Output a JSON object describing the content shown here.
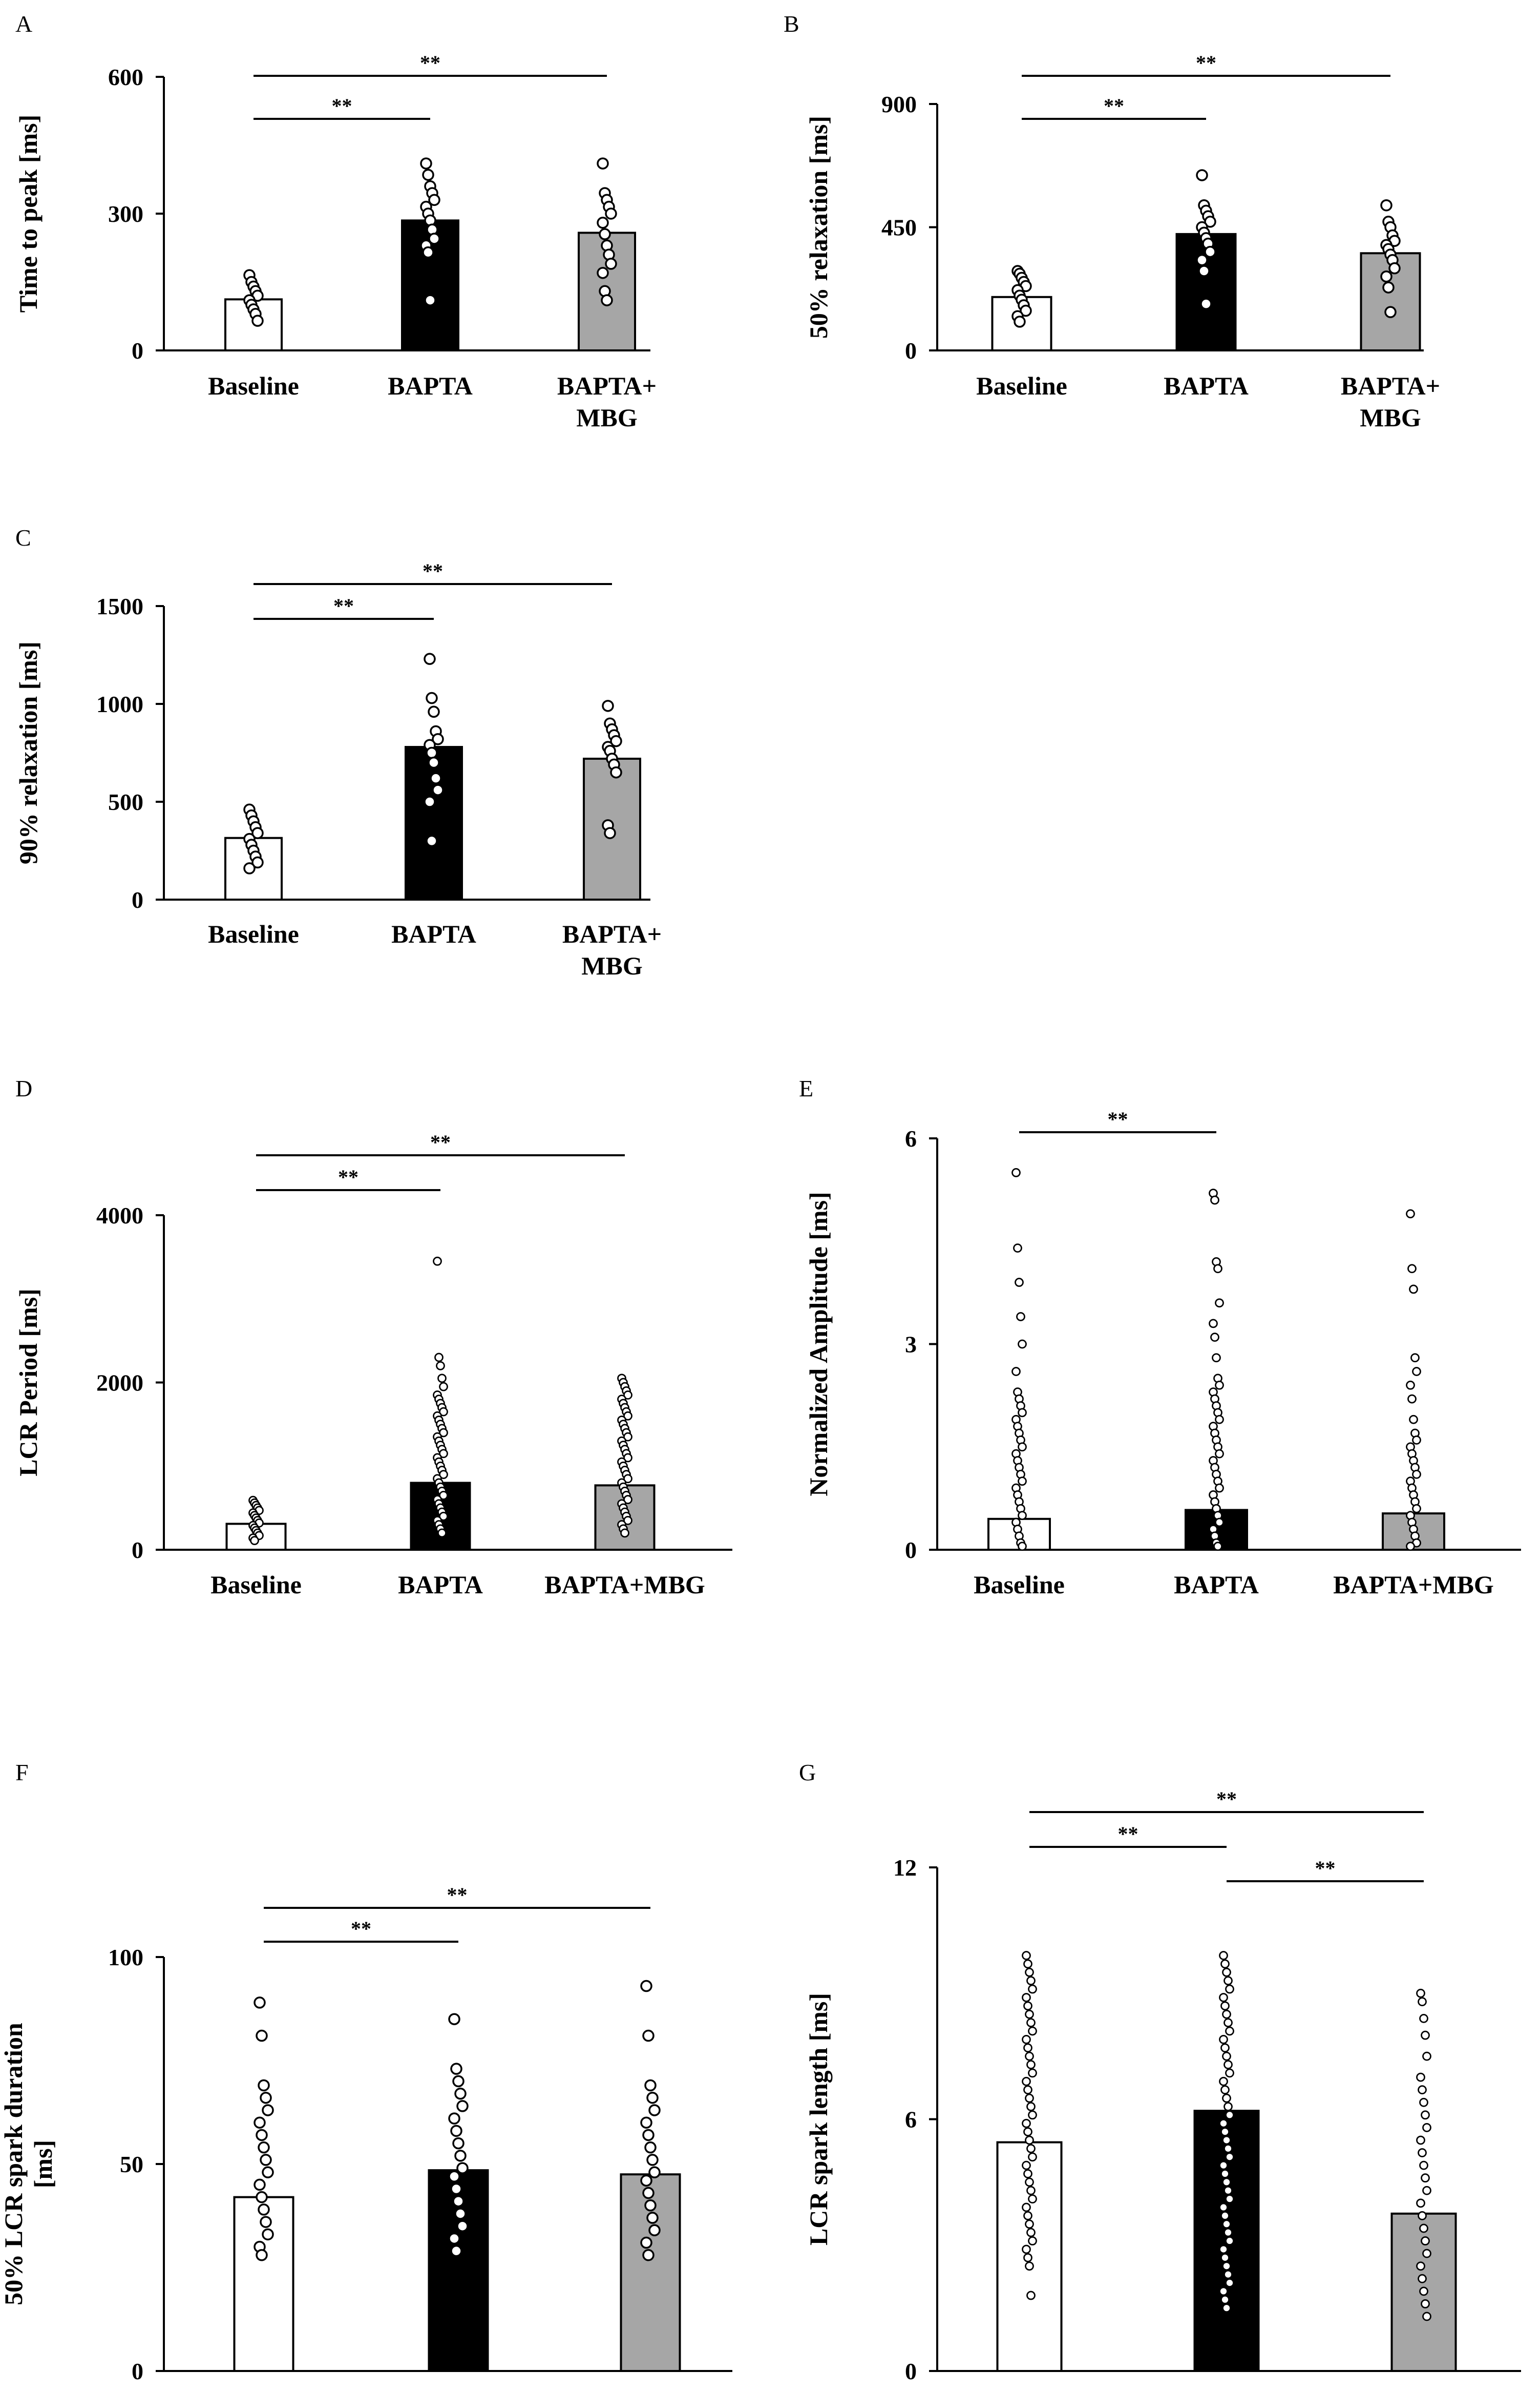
{
  "figure": {
    "colors": {
      "baseline": "#ffffff",
      "bapta": "#000000",
      "bapta_mbg": "#a6a6a6",
      "axis": "#000000"
    }
  },
  "chart_data": [
    {
      "id": "A",
      "panel_label": "A",
      "type": "bar",
      "ylabel": [
        "Time to peak [ms]"
      ],
      "ylim": [
        0,
        600
      ],
      "yticks": [
        0,
        300,
        600
      ],
      "ytick_labels": [
        "0",
        "300",
        "600"
      ],
      "categories": [
        [
          "Baseline"
        ],
        [
          "BAPTA"
        ],
        [
          "BAPTA+",
          "MBG"
        ]
      ],
      "values": [
        112,
        285,
        258
      ],
      "points": [
        [
          165,
          150,
          140,
          130,
          120,
          110,
          100,
          90,
          80,
          65
        ],
        [
          410,
          385,
          360,
          345,
          330,
          315,
          300,
          285,
          265,
          245,
          230,
          215,
          110
        ],
        [
          410,
          345,
          330,
          315,
          300,
          280,
          255,
          230,
          210,
          190,
          170,
          130,
          110
        ]
      ],
      "significance": [
        {
          "from": 0,
          "to": 1,
          "label": "**"
        },
        {
          "from": 0,
          "to": 2,
          "label": "**"
        }
      ]
    },
    {
      "id": "B",
      "panel_label": "B",
      "type": "bar",
      "ylabel": [
        "50% relaxation [ms]"
      ],
      "ylim": [
        0,
        900
      ],
      "yticks": [
        0,
        450,
        900
      ],
      "ytick_labels": [
        "0",
        "450",
        "900"
      ],
      "categories": [
        [
          "Baseline"
        ],
        [
          "BAPTA"
        ],
        [
          "BAPTA+",
          "MBG"
        ]
      ],
      "values": [
        195,
        425,
        355
      ],
      "points": [
        [
          290,
          280,
          265,
          250,
          235,
          220,
          200,
          185,
          165,
          145,
          125,
          105
        ],
        [
          640,
          530,
          510,
          490,
          470,
          450,
          430,
          410,
          390,
          360,
          330,
          290,
          170
        ],
        [
          530,
          470,
          450,
          420,
          400,
          385,
          370,
          350,
          330,
          300,
          270,
          230,
          140
        ]
      ],
      "significance": [
        {
          "from": 0,
          "to": 1,
          "label": "**"
        },
        {
          "from": 0,
          "to": 2,
          "label": "**"
        }
      ]
    },
    {
      "id": "C",
      "panel_label": "C",
      "type": "bar",
      "ylabel": [
        "90% relaxation [ms]"
      ],
      "ylim": [
        0,
        1500
      ],
      "yticks": [
        0,
        500,
        1000,
        1500
      ],
      "ytick_labels": [
        "0",
        "500",
        "1000",
        "1500"
      ],
      "categories": [
        [
          "Baseline"
        ],
        [
          "BAPTA"
        ],
        [
          "BAPTA+",
          "MBG"
        ]
      ],
      "values": [
        315,
        780,
        720
      ],
      "points": [
        [
          460,
          430,
          400,
          370,
          340,
          310,
          280,
          250,
          220,
          190,
          160
        ],
        [
          1230,
          1030,
          960,
          860,
          820,
          790,
          750,
          700,
          620,
          560,
          500,
          300
        ],
        [
          990,
          900,
          870,
          840,
          810,
          780,
          760,
          720,
          690,
          650,
          380,
          340
        ]
      ],
      "significance": [
        {
          "from": 0,
          "to": 1,
          "label": "**"
        },
        {
          "from": 0,
          "to": 2,
          "label": "**"
        }
      ]
    },
    {
      "id": "D",
      "panel_label": "D",
      "type": "bar",
      "ylabel": [
        "LCR Period [ms]"
      ],
      "ylim": [
        0,
        4000
      ],
      "yticks": [
        0,
        2000,
        4000
      ],
      "ytick_labels": [
        "0",
        "2000",
        "4000"
      ],
      "categories": [
        [
          "Baseline"
        ],
        [
          "BAPTA"
        ],
        [
          "BAPTA+MBG"
        ]
      ],
      "values": [
        310,
        800,
        770
      ],
      "points": [
        [
          590,
          560,
          530,
          500,
          470,
          440,
          410,
          380,
          350,
          320,
          290,
          260,
          230,
          200,
          170,
          140,
          110
        ],
        [
          3450,
          2300,
          2200,
          2050,
          1950,
          1850,
          1800,
          1750,
          1700,
          1650,
          1600,
          1550,
          1500,
          1450,
          1400,
          1350,
          1300,
          1250,
          1200,
          1150,
          1100,
          1050,
          1000,
          950,
          900,
          850,
          800,
          750,
          700,
          650,
          600,
          550,
          500,
          450,
          400,
          350,
          300,
          250,
          200
        ],
        [
          2050,
          2000,
          1950,
          1900,
          1850,
          1800,
          1750,
          1700,
          1650,
          1600,
          1550,
          1500,
          1450,
          1400,
          1350,
          1300,
          1250,
          1200,
          1150,
          1100,
          1050,
          1000,
          950,
          900,
          850,
          800,
          750,
          700,
          650,
          600,
          550,
          500,
          450,
          400,
          350,
          300,
          250,
          200
        ]
      ],
      "significance": [
        {
          "from": 0,
          "to": 1,
          "label": "**"
        },
        {
          "from": 0,
          "to": 2,
          "label": "**"
        }
      ]
    },
    {
      "id": "E",
      "panel_label": "E",
      "type": "bar",
      "ylabel": [
        "Normalized Amplitude [ms]"
      ],
      "ylim": [
        0,
        6
      ],
      "yticks": [
        0,
        3,
        6
      ],
      "ytick_labels": [
        "0",
        "3",
        "6"
      ],
      "categories": [
        [
          "Baseline"
        ],
        [
          "BAPTA"
        ],
        [
          "BAPTA+MBG"
        ]
      ],
      "values": [
        0.45,
        0.58,
        0.53
      ],
      "points": [
        [
          5.5,
          4.4,
          3.9,
          3.4,
          3.0,
          2.6,
          2.3,
          2.2,
          2.1,
          2.0,
          1.9,
          1.8,
          1.7,
          1.6,
          1.5,
          1.4,
          1.3,
          1.2,
          1.1,
          1.0,
          0.9,
          0.8,
          0.7,
          0.6,
          0.5,
          0.4,
          0.3,
          0.2,
          0.1,
          0.05
        ],
        [
          5.2,
          5.1,
          4.2,
          4.1,
          3.6,
          3.3,
          3.1,
          2.8,
          2.5,
          2.4,
          2.3,
          2.2,
          2.1,
          2.0,
          1.9,
          1.8,
          1.7,
          1.6,
          1.5,
          1.4,
          1.3,
          1.2,
          1.1,
          1.0,
          0.9,
          0.8,
          0.7,
          0.6,
          0.5,
          0.4,
          0.3,
          0.2,
          0.1,
          0.05
        ],
        [
          4.9,
          4.1,
          3.8,
          2.8,
          2.6,
          2.4,
          2.2,
          1.9,
          1.7,
          1.6,
          1.5,
          1.4,
          1.3,
          1.2,
          1.1,
          1.0,
          0.9,
          0.8,
          0.7,
          0.6,
          0.5,
          0.4,
          0.3,
          0.2,
          0.1,
          0.05
        ]
      ],
      "significance": [
        {
          "from": 0,
          "to": 1,
          "label": "**"
        }
      ]
    },
    {
      "id": "F",
      "panel_label": "F",
      "type": "bar",
      "ylabel": [
        "50% LCR spark duration",
        "[ms]"
      ],
      "ylim": [
        0,
        100
      ],
      "yticks": [
        0,
        50,
        100
      ],
      "ytick_labels": [
        "0",
        "50",
        "100"
      ],
      "categories": [
        [
          "Baseline"
        ],
        [
          "BAPTA"
        ],
        [
          "BAPTA+MBG"
        ]
      ],
      "values": [
        42,
        48.5,
        47.5
      ],
      "points": [
        [
          89,
          81,
          69,
          66,
          63,
          60,
          57,
          54,
          51,
          48,
          45,
          42,
          39,
          36,
          33,
          30,
          28
        ],
        [
          85,
          73,
          70,
          67,
          64,
          61,
          58,
          55,
          52,
          49,
          47,
          44,
          41,
          38,
          35,
          32,
          29
        ],
        [
          93,
          81,
          69,
          66,
          63,
          60,
          57,
          54,
          51,
          48,
          46,
          43,
          40,
          37,
          34,
          31,
          28
        ]
      ],
      "significance": [
        {
          "from": 0,
          "to": 1,
          "label": "**"
        },
        {
          "from": 0,
          "to": 2,
          "label": "**"
        }
      ]
    },
    {
      "id": "G",
      "panel_label": "G",
      "type": "bar",
      "ylabel": [
        "LCR spark length [ms]"
      ],
      "ylim": [
        0,
        12
      ],
      "yticks": [
        0,
        6,
        12
      ],
      "ytick_labels": [
        "0",
        "6",
        "12"
      ],
      "categories": [
        [
          "Baseline"
        ],
        [
          "BAPTA"
        ],
        [
          "BAPTA+MBG"
        ]
      ],
      "values": [
        5.45,
        6.2,
        3.75
      ],
      "points": [
        [
          9.9,
          9.7,
          9.5,
          9.3,
          9.1,
          8.9,
          8.7,
          8.5,
          8.3,
          8.1,
          7.9,
          7.7,
          7.5,
          7.3,
          7.1,
          6.9,
          6.7,
          6.5,
          6.3,
          6.1,
          5.9,
          5.7,
          5.5,
          5.3,
          5.1,
          4.9,
          4.7,
          4.5,
          4.3,
          4.1,
          3.9,
          3.7,
          3.5,
          3.3,
          3.1,
          2.9,
          2.7,
          2.5,
          1.8
        ],
        [
          9.9,
          9.7,
          9.5,
          9.3,
          9.1,
          8.9,
          8.7,
          8.5,
          8.3,
          8.1,
          7.9,
          7.7,
          7.5,
          7.3,
          7.1,
          6.9,
          6.7,
          6.5,
          6.3,
          6.1,
          5.9,
          5.7,
          5.5,
          5.3,
          5.1,
          4.9,
          4.7,
          4.5,
          4.3,
          4.1,
          3.9,
          3.7,
          3.5,
          3.3,
          3.1,
          2.9,
          2.7,
          2.5,
          2.3,
          2.1,
          1.9,
          1.7,
          1.5
        ],
        [
          9.0,
          8.8,
          8.4,
          8.0,
          7.5,
          7.0,
          6.7,
          6.4,
          6.1,
          5.8,
          5.5,
          5.2,
          4.9,
          4.6,
          4.3,
          4.0,
          3.7,
          3.4,
          3.1,
          2.8,
          2.5,
          2.2,
          1.9,
          1.6,
          1.3
        ]
      ],
      "significance": [
        {
          "from": 0,
          "to": 1,
          "label": "**"
        },
        {
          "from": 0,
          "to": 2,
          "label": "**"
        },
        {
          "from": 1,
          "to": 2,
          "label": "**"
        }
      ]
    }
  ]
}
